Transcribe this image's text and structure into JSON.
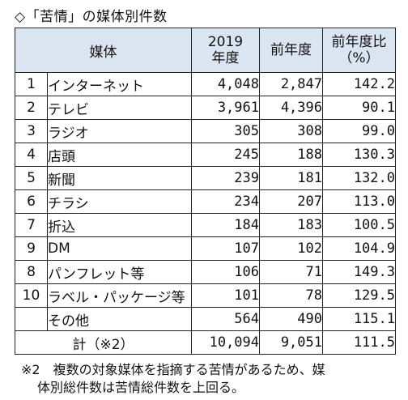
{
  "title": "◇「苦情」の媒体別件数",
  "headers": {
    "media": "媒体",
    "year2019_line1": "2019",
    "year2019_line2": "年度",
    "prev_year": "前年度",
    "ratio_line1": "前年度比",
    "ratio_line2": "（%）"
  },
  "rows": [
    {
      "no": "1",
      "name": "インターネット",
      "y2019": "4,048",
      "prev": "2,847",
      "ratio": "142.2"
    },
    {
      "no": "2",
      "name": "テレビ",
      "y2019": "3,961",
      "prev": "4,396",
      "ratio": "90.1"
    },
    {
      "no": "3",
      "name": "ラジオ",
      "y2019": "305",
      "prev": "308",
      "ratio": "99.0"
    },
    {
      "no": "4",
      "name": "店頭",
      "y2019": "245",
      "prev": "188",
      "ratio": "130.3"
    },
    {
      "no": "5",
      "name": "新聞",
      "y2019": "239",
      "prev": "181",
      "ratio": "132.0"
    },
    {
      "no": "6",
      "name": "チラシ",
      "y2019": "234",
      "prev": "207",
      "ratio": "113.0"
    },
    {
      "no": "7",
      "name": "折込",
      "y2019": "184",
      "prev": "183",
      "ratio": "100.5"
    },
    {
      "no": "9",
      "name": "DM",
      "y2019": "107",
      "prev": "102",
      "ratio": "104.9"
    },
    {
      "no": "8",
      "name": "パンフレット等",
      "y2019": "106",
      "prev": "71",
      "ratio": "149.3"
    },
    {
      "no": "10",
      "name": "ラベル・パッケージ等",
      "y2019": "101",
      "prev": "78",
      "ratio": "129.5"
    },
    {
      "no": "",
      "name": "その他",
      "y2019": "564",
      "prev": "490",
      "ratio": "115.1"
    }
  ],
  "total": {
    "label": "計（※2）",
    "y2019": "10,094",
    "prev": "9,051",
    "ratio": "111.5"
  },
  "note": {
    "line1": "※2　複数の対象媒体を指摘する苦情があるため、媒",
    "line2": "体別総件数は苦情総件数を上回る。"
  }
}
